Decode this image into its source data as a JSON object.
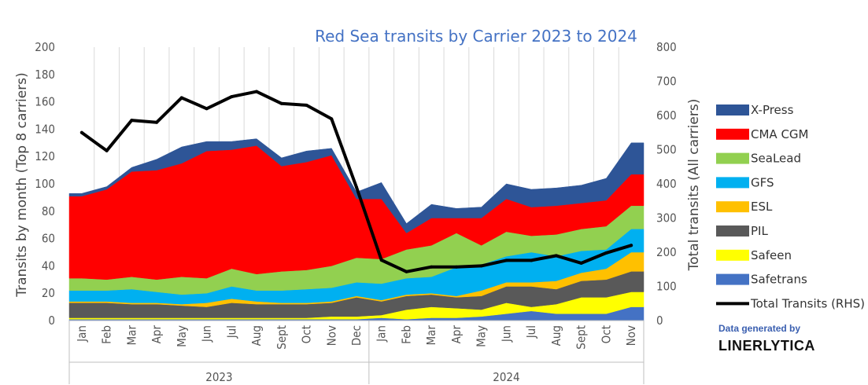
{
  "chart_data": {
    "type": "area",
    "title": "Red Sea transits by Carrier 2023 to 2024",
    "ylabel": "Transits by month (Top 8 carriers)",
    "y2label": "Total transits (All carriers)",
    "ylim": [
      0,
      200
    ],
    "y2lim": [
      0,
      800
    ],
    "yticks": [
      0,
      20,
      40,
      60,
      80,
      100,
      120,
      140,
      160,
      180,
      200
    ],
    "y2ticks": [
      0,
      100,
      200,
      300,
      400,
      500,
      600,
      700,
      800
    ],
    "categories": [
      "Jan",
      "Feb",
      "Mar",
      "Apr",
      "May",
      "Jun",
      "Jul",
      "Aug",
      "Sept",
      "Oct",
      "Nov",
      "Dec",
      "Jan",
      "Feb",
      "Mar",
      "Apr",
      "May",
      "Jun",
      "Jul",
      "Aug",
      "Sept",
      "Oct",
      "Nov"
    ],
    "year_groups": [
      {
        "label": "2023",
        "count": 12
      },
      {
        "label": "2024",
        "count": 11
      }
    ],
    "stacked": true,
    "series": [
      {
        "name": "Safetrans",
        "color": "#4472c4",
        "values": [
          1,
          1,
          1,
          1,
          1,
          1,
          1,
          1,
          1,
          1,
          1,
          1,
          2,
          1,
          2,
          2,
          3,
          5,
          7,
          5,
          5,
          5,
          10
        ]
      },
      {
        "name": "Safeen",
        "color": "#ffff00",
        "values": [
          1,
          1,
          1,
          1,
          1,
          1,
          1,
          1,
          1,
          1,
          2,
          2,
          2,
          7,
          8,
          7,
          5,
          8,
          3,
          7,
          12,
          12,
          11
        ]
      },
      {
        "name": "PIL",
        "color": "#595959",
        "values": [
          11,
          11,
          10,
          10,
          9,
          8,
          11,
          10,
          10,
          10,
          10,
          14,
          10,
          10,
          9,
          8,
          10,
          12,
          15,
          11,
          12,
          13,
          15
        ]
      },
      {
        "name": "ESL",
        "color": "#ffc000",
        "values": [
          1,
          1,
          1,
          1,
          1,
          3,
          3,
          2,
          1,
          1,
          1,
          1,
          1,
          1,
          1,
          1,
          4,
          3,
          3,
          6,
          6,
          8,
          14
        ]
      },
      {
        "name": "GFS",
        "color": "#00b0f0",
        "values": [
          8,
          8,
          10,
          8,
          7,
          7,
          9,
          8,
          9,
          10,
          10,
          10,
          12,
          12,
          12,
          21,
          19,
          19,
          22,
          18,
          16,
          14,
          17
        ]
      },
      {
        "name": "SeaLead",
        "color": "#92d050",
        "values": [
          9,
          8,
          9,
          9,
          13,
          11,
          13,
          12,
          14,
          14,
          16,
          18,
          18,
          21,
          23,
          25,
          14,
          18,
          12,
          16,
          16,
          17,
          17
        ]
      },
      {
        "name": "CMA CGM",
        "color": "#ff0000",
        "values": [
          60,
          66,
          77,
          80,
          83,
          93,
          87,
          94,
          77,
          79,
          81,
          43,
          44,
          12,
          20,
          11,
          20,
          24,
          21,
          21,
          19,
          19,
          23
        ]
      },
      {
        "name": "X-Press",
        "color": "#2e5597",
        "values": [
          2,
          2,
          3,
          8,
          12,
          7,
          6,
          5,
          6,
          8,
          5,
          5,
          12,
          7,
          10,
          7,
          8,
          11,
          13,
          13,
          13,
          16,
          23
        ]
      }
    ],
    "line_series": {
      "name": "Total Transits (RHS)",
      "color": "#000000",
      "axis": "right",
      "values": [
        550,
        497,
        586,
        580,
        652,
        620,
        655,
        670,
        635,
        630,
        590,
        390,
        177,
        143,
        157,
        157,
        160,
        176,
        176,
        190,
        168,
        198,
        220
      ]
    },
    "legend_order": [
      "X-Press",
      "CMA CGM",
      "SeaLead",
      "GFS",
      "ESL",
      "PIL",
      "Safeen",
      "Safetrans",
      "Total Transits (RHS)"
    ],
    "legend_position": "right",
    "grid": "vertical"
  },
  "credit": {
    "line1": "Data generated by",
    "line2": "LINERLYTICA"
  }
}
